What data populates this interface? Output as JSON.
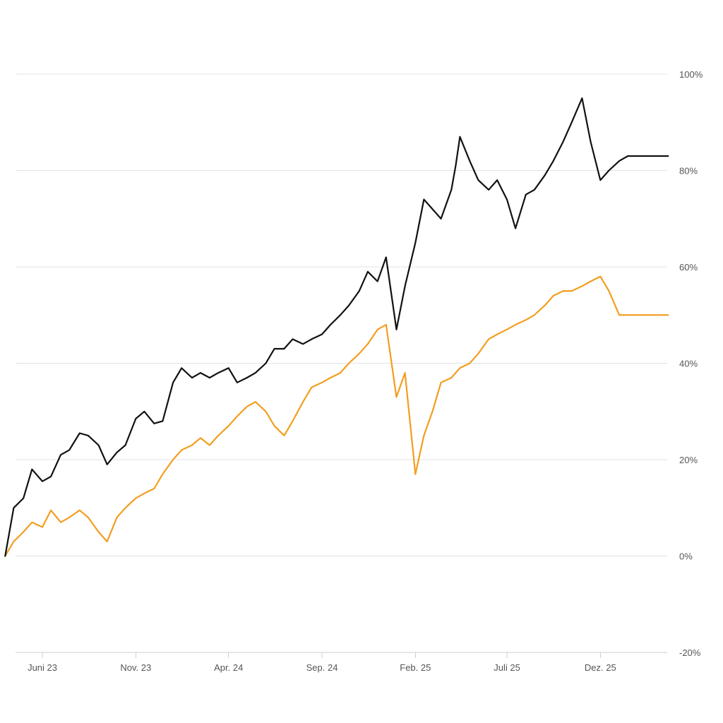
{
  "chart_data": {
    "type": "line",
    "x_ticks": [
      "Juni 23",
      "Nov. 23",
      "Apr. 24",
      "Sep. 24",
      "Feb. 25",
      "Juli 25",
      "Dez. 25"
    ],
    "y_ticks": [
      "100%",
      "80%",
      "60%",
      "40%",
      "20%",
      "0%",
      "-20%"
    ],
    "ylim": [
      -20,
      100
    ],
    "x_range": [
      "2023-04",
      "2026-03"
    ],
    "grid": true,
    "series": [
      {
        "color": "#111111",
        "x": [
          "2023-04-01",
          "2023-04-15",
          "2023-05-01",
          "2023-05-15",
          "2023-06-01",
          "2023-06-15",
          "2023-07-01",
          "2023-07-15",
          "2023-08-01",
          "2023-08-15",
          "2023-09-01",
          "2023-09-15",
          "2023-10-01",
          "2023-10-15",
          "2023-11-01",
          "2023-11-15",
          "2023-12-01",
          "2023-12-15",
          "2024-01-01",
          "2024-01-15",
          "2024-02-01",
          "2024-02-15",
          "2024-03-01",
          "2024-03-15",
          "2024-04-01",
          "2024-04-15",
          "2024-05-01",
          "2024-05-15",
          "2024-06-01",
          "2024-06-15",
          "2024-07-01",
          "2024-07-15",
          "2024-08-01",
          "2024-08-15",
          "2024-09-01",
          "2024-09-15",
          "2024-10-01",
          "2024-10-15",
          "2024-11-01",
          "2024-11-15",
          "2024-12-01",
          "2024-12-15",
          "2025-01-01",
          "2025-01-15",
          "2025-02-01",
          "2025-02-15",
          "2025-03-01",
          "2025-03-15",
          "2025-04-01",
          "2025-04-08",
          "2025-04-15",
          "2025-05-01",
          "2025-05-15",
          "2025-06-01",
          "2025-06-15",
          "2025-07-01",
          "2025-07-15",
          "2025-08-01",
          "2025-08-15",
          "2025-09-01",
          "2025-09-15",
          "2025-10-01",
          "2025-10-15",
          "2025-11-01",
          "2025-11-15",
          "2025-12-01",
          "2025-12-15",
          "2026-01-01",
          "2026-01-15",
          "2026-02-01",
          "2026-02-08",
          "2026-02-15",
          "2026-03-01",
          "2026-03-08",
          "2026-03-15",
          "2026-03-22"
        ],
        "values": [
          0,
          10,
          12,
          18,
          15.5,
          16.5,
          21,
          22,
          25.5,
          25,
          23,
          19,
          21.5,
          23,
          28.5,
          30,
          27.5,
          28,
          36,
          39,
          37,
          38,
          37,
          38,
          39,
          36,
          37,
          38,
          40,
          43,
          43,
          45,
          44,
          45,
          46,
          48,
          50,
          52,
          55,
          59,
          57,
          62,
          47,
          56,
          65,
          74,
          72,
          70,
          76,
          81,
          87,
          82,
          78,
          76,
          78,
          74,
          68,
          75,
          76,
          79,
          82,
          86,
          90,
          95,
          86,
          78,
          80,
          82,
          83,
          83,
          83,
          83,
          83,
          83,
          83,
          83
        ],
        "_note": ""
      },
      {
        "color": "#f29e1f",
        "x": [
          "2023-04-01",
          "2023-04-15",
          "2023-05-01",
          "2023-05-15",
          "2023-06-01",
          "2023-06-15",
          "2023-07-01",
          "2023-07-15",
          "2023-08-01",
          "2023-08-15",
          "2023-09-01",
          "2023-09-15",
          "2023-10-01",
          "2023-10-15",
          "2023-11-01",
          "2023-11-15",
          "2023-12-01",
          "2023-12-15",
          "2024-01-01",
          "2024-01-15",
          "2024-02-01",
          "2024-02-15",
          "2024-03-01",
          "2024-03-15",
          "2024-04-01",
          "2024-04-15",
          "2024-05-01",
          "2024-05-15",
          "2024-06-01",
          "2024-06-15",
          "2024-07-01",
          "2024-07-15",
          "2024-08-01",
          "2024-08-15",
          "2024-09-01",
          "2024-09-15",
          "2024-10-01",
          "2024-10-15",
          "2024-11-01",
          "2024-11-15",
          "2024-12-01",
          "2024-12-15",
          "2025-01-01",
          "2025-01-15",
          "2025-02-01",
          "2025-02-15",
          "2025-03-01",
          "2025-03-15",
          "2025-04-01",
          "2025-04-08",
          "2025-04-15",
          "2025-05-01",
          "2025-05-15",
          "2025-06-01",
          "2025-06-15",
          "2025-07-01",
          "2025-07-15",
          "2025-08-01",
          "2025-08-15",
          "2025-09-01",
          "2025-09-15",
          "2025-10-01",
          "2025-10-15",
          "2025-11-01",
          "2025-11-15",
          "2025-12-01",
          "2025-12-15",
          "2026-01-01",
          "2026-01-15",
          "2026-02-01",
          "2026-02-08",
          "2026-02-15",
          "2026-03-01",
          "2026-03-08",
          "2026-03-15",
          "2026-03-22"
        ],
        "values": [
          0,
          3,
          5,
          7,
          6,
          9.5,
          7,
          8,
          9.5,
          8,
          5,
          3,
          8,
          10,
          12,
          13,
          14,
          17,
          20,
          22,
          23,
          24.5,
          23,
          25,
          27,
          29,
          31,
          32,
          30,
          27,
          25,
          28,
          32,
          35,
          36,
          37,
          38,
          40,
          42,
          44,
          47,
          48,
          33,
          38,
          17,
          25,
          30,
          36,
          37,
          38,
          39,
          40,
          42,
          45,
          46,
          47,
          48,
          49,
          50,
          52,
          54,
          55,
          55,
          56,
          57,
          58,
          55,
          50,
          50,
          50,
          50,
          50,
          50,
          50,
          50,
          50
        ]
      }
    ]
  }
}
